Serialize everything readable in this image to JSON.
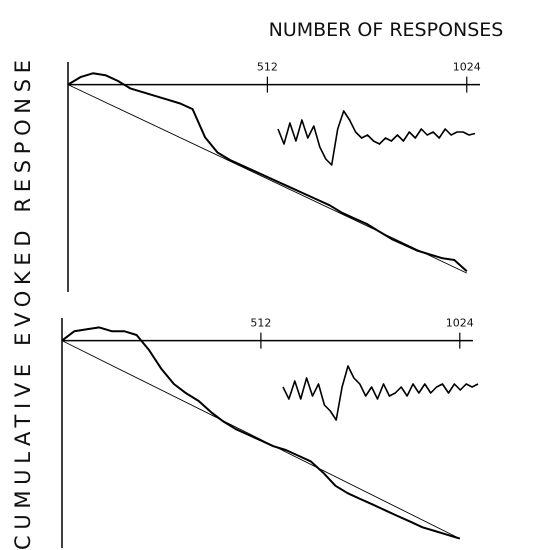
{
  "chart_data": [
    {
      "type": "line",
      "xlabel": "NUMBER OF RESPONSES",
      "ylabel": "CUMULATIVE EVOKED RESPONSE",
      "xlim": [
        0,
        1058
      ],
      "ylim": [
        -110,
        12
      ],
      "xticks": [
        512,
        1024
      ],
      "series": [
        {
          "color": "#000000",
          "x": [
            0,
            32,
            64,
            96,
            128,
            160,
            192,
            224,
            256,
            288,
            320,
            352,
            384,
            416,
            448,
            480,
            512,
            544,
            576,
            608,
            640,
            672,
            704,
            736,
            768,
            800,
            832,
            864,
            896,
            928,
            960,
            992,
            1024
          ],
          "values": [
            0,
            4,
            6,
            5,
            2,
            -2,
            -4,
            -6,
            -8,
            -10,
            -13,
            -28,
            -36,
            -40,
            -43,
            -46,
            -49,
            -52,
            -55,
            -58,
            -61,
            -64,
            -68,
            -71,
            -74,
            -78,
            -82,
            -85,
            -88,
            -90,
            -92,
            -93,
            -99
          ]
        },
        {
          "color": "#000000",
          "x": [
            0,
            1024
          ],
          "values": [
            0,
            -100
          ]
        }
      ],
      "inset": {
        "color": "#000000",
        "ylim": [
          -1,
          1
        ],
        "values": [
          0.2,
          -0.3,
          0.4,
          -0.2,
          0.5,
          -0.1,
          0.3,
          -0.4,
          -0.8,
          -1,
          0.2,
          0.8,
          0.5,
          0.1,
          -0.1,
          0,
          -0.2,
          -0.3,
          -0.1,
          -0.2,
          0,
          -0.2,
          0.1,
          -0.1,
          0.2,
          0,
          0.1,
          -0.1,
          0.2,
          0,
          0.1,
          0.1,
          0,
          0.05
        ]
      }
    },
    {
      "type": "line",
      "xlim": [
        0,
        1058
      ],
      "ylim": [
        -110,
        12
      ],
      "xticks": [
        512,
        1024
      ],
      "series": [
        {
          "color": "#000000",
          "x": [
            0,
            32,
            64,
            96,
            128,
            160,
            192,
            224,
            256,
            288,
            320,
            352,
            384,
            416,
            448,
            480,
            512,
            544,
            576,
            608,
            640,
            672,
            704,
            736,
            768,
            800,
            832,
            864,
            896,
            928,
            960,
            992,
            1024
          ],
          "values": [
            0,
            5,
            6,
            7,
            5,
            5,
            3,
            -5,
            -15,
            -23,
            -28,
            -32,
            -38,
            -43,
            -47,
            -50,
            -53,
            -56,
            -58,
            -61,
            -64,
            -70,
            -77,
            -81,
            -84,
            -87,
            -90,
            -93,
            -96,
            -99,
            -101,
            -103,
            -105
          ]
        },
        {
          "color": "#000000",
          "x": [
            0,
            1024
          ],
          "values": [
            0,
            -105
          ]
        }
      ],
      "inset": {
        "color": "#000000",
        "ylim": [
          -1,
          1
        ],
        "values": [
          0.1,
          -0.3,
          0.3,
          -0.3,
          0.4,
          -0.2,
          0.2,
          -0.5,
          -0.7,
          -1,
          0.1,
          0.8,
          0.4,
          0.2,
          -0.2,
          0.1,
          -0.3,
          0.2,
          -0.2,
          -0.1,
          0.1,
          -0.2,
          0.2,
          -0.1,
          0.2,
          -0.1,
          0.1,
          0.2,
          -0.1,
          0.2,
          0,
          0.2,
          0.1,
          0.2
        ]
      }
    }
  ]
}
